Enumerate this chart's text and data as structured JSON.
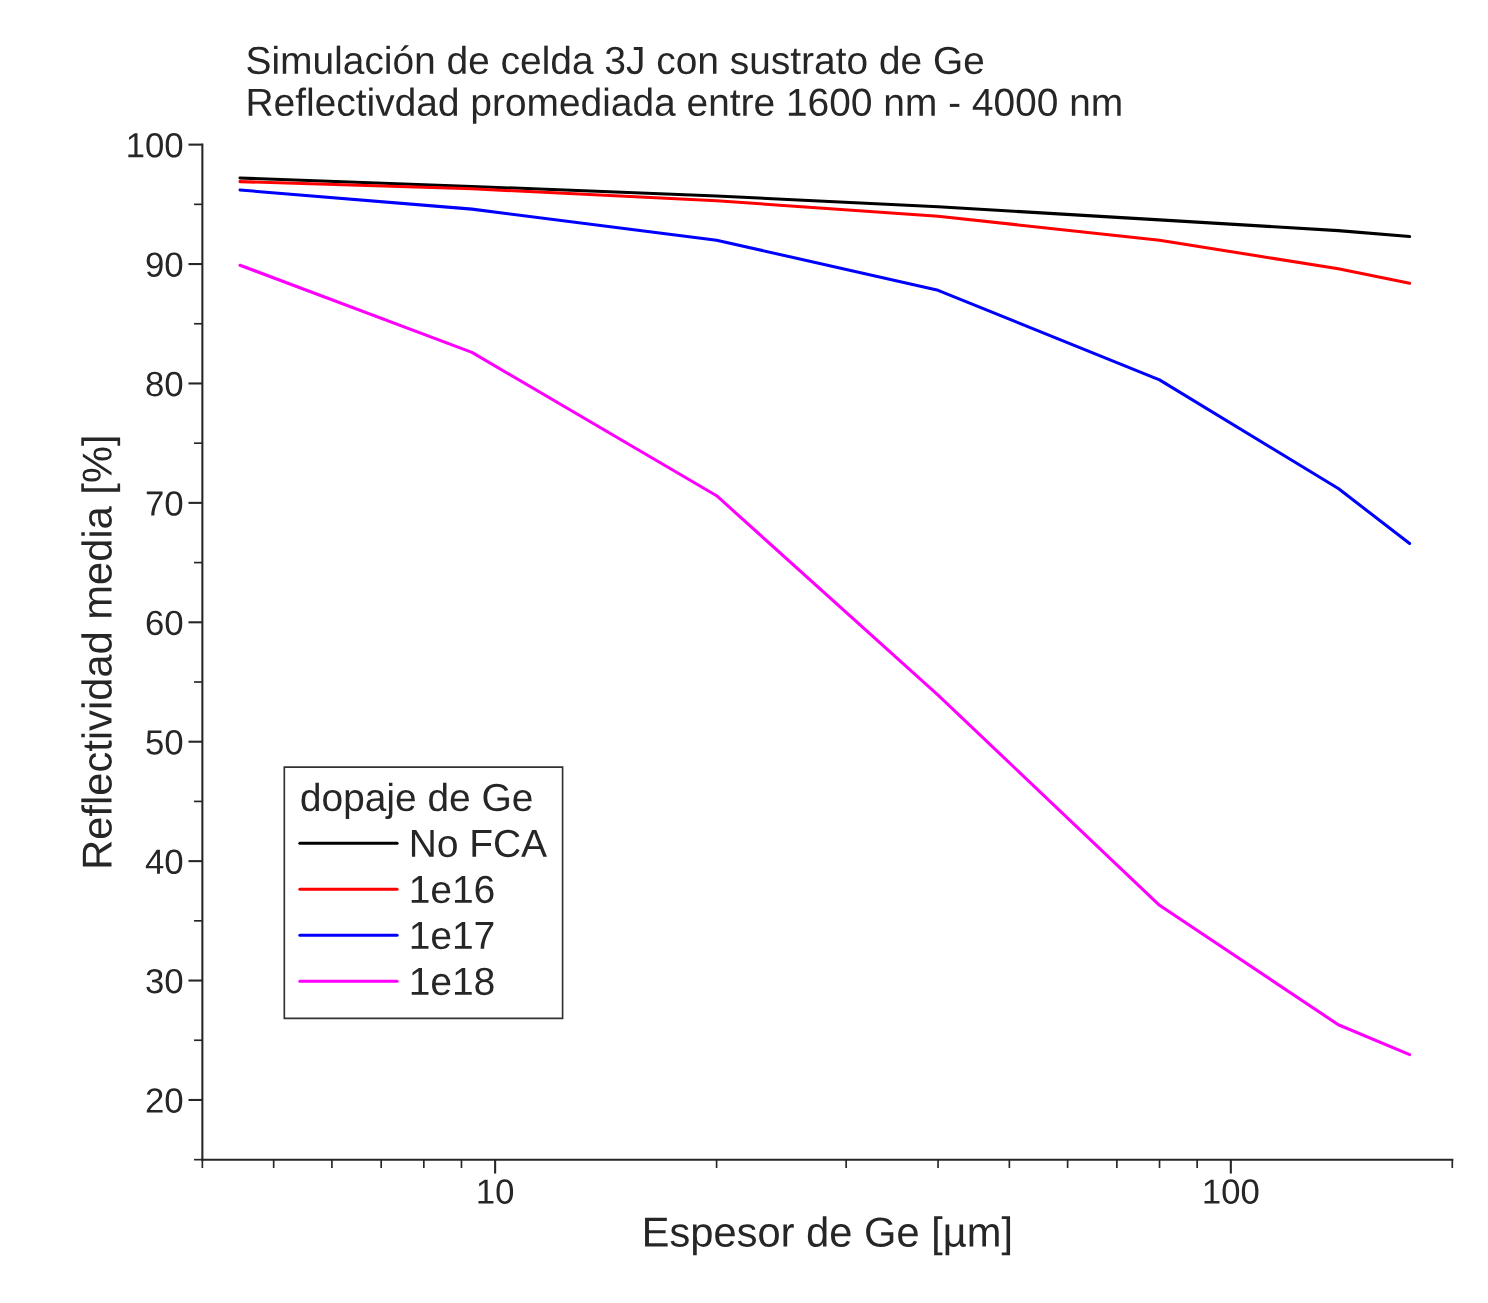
{
  "chart_data": {
    "type": "line",
    "title": "Simulación de celda 3J con sustrato de Ge\nReflectivdad promediada entre 1600 nm - 4000 nm",
    "xlabel": "Espesor de Ge [µm]",
    "ylabel": "Reflectividad media [%]",
    "legend_title": "dopaje de Ge",
    "legend": "bottom left",
    "grid": false,
    "log": "x",
    "x": [
      4.5,
      9.3,
      20,
      40,
      80,
      140,
      175
    ],
    "series": [
      {
        "name": "No FCA",
        "color": "#000000",
        "values": [
          97.2,
          96.5,
          95.7,
          94.8,
          93.7,
          92.8,
          92.3
        ]
      },
      {
        "name": "1e16",
        "color": "#ff0000",
        "values": [
          96.9,
          96.3,
          95.3,
          94.0,
          92.0,
          89.6,
          88.4
        ]
      },
      {
        "name": "1e17",
        "color": "#0000ff",
        "values": [
          96.2,
          94.6,
          92.0,
          87.8,
          80.3,
          71.2,
          66.6
        ]
      },
      {
        "name": "1e18",
        "color": "#ff00ff",
        "values": [
          89.9,
          82.6,
          70.6,
          53.9,
          36.3,
          26.3,
          23.8
        ]
      }
    ],
    "xlim": [
      4,
      200
    ],
    "xticks": [
      10,
      100
    ],
    "ylim": [
      15,
      100
    ],
    "yticks": [
      20,
      30,
      40,
      50,
      60,
      70,
      80,
      90,
      100
    ]
  }
}
